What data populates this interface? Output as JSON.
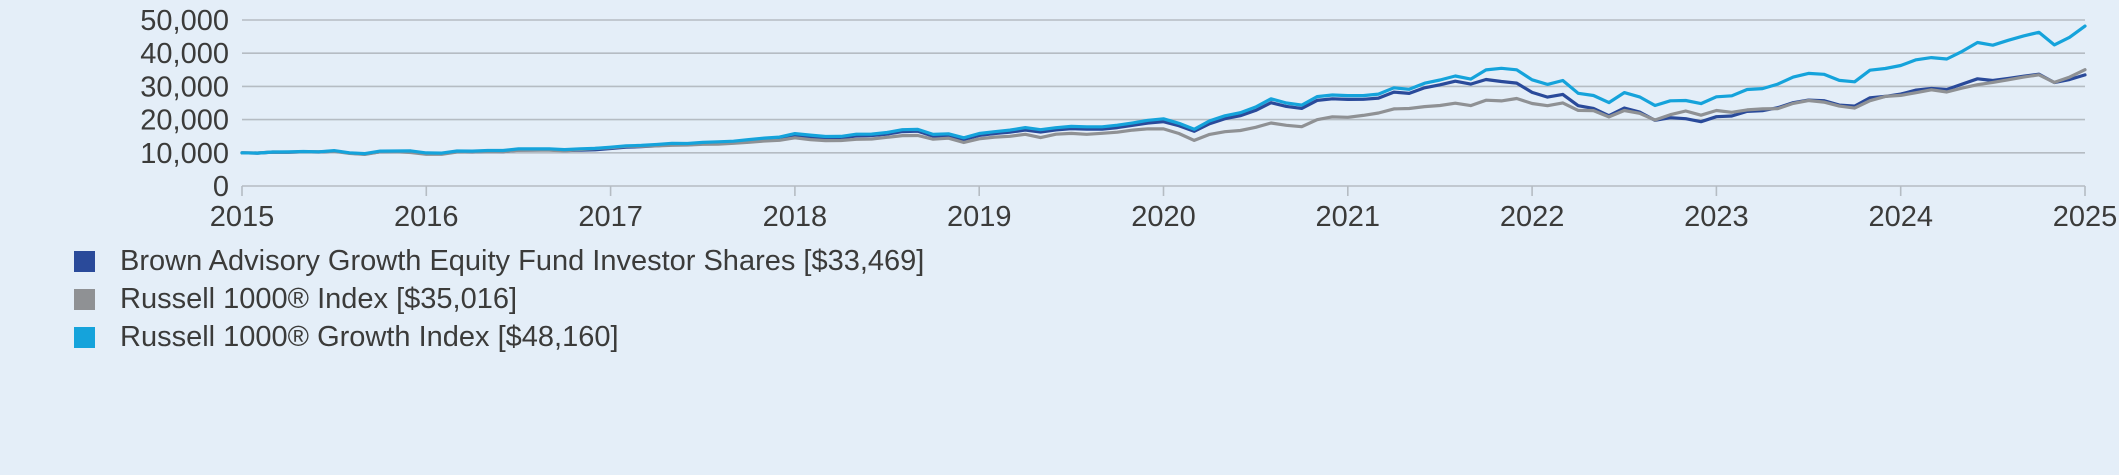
{
  "background_color": "#e4eef8",
  "chart_data": {
    "type": "line",
    "title": "",
    "xlabel": "",
    "ylabel": "",
    "grid": true,
    "grid_color": "#b5bcc3",
    "axis_color": "#b5bcc3",
    "text_color": "#3b3b3a",
    "legend_position": "bottom-left",
    "ylim": [
      0,
      50000
    ],
    "y_ticks": [
      0,
      10000,
      20000,
      30000,
      40000,
      50000
    ],
    "y_tick_labels": [
      "0",
      "10,000",
      "20,000",
      "30,000",
      "40,000",
      "50,000"
    ],
    "x_start": 2015,
    "x_end": 2025,
    "x_tick_labels": [
      "2015",
      "2016",
      "2017",
      "2018",
      "2019",
      "2020",
      "2021",
      "2022",
      "2023",
      "2024",
      "2025"
    ],
    "x_frequency": "monthly",
    "series": [
      {
        "name": "Brown Advisory Growth Equity Fund Investor Shares [$33,469]",
        "final_value": "$33,469",
        "color": "#2a4a9a",
        "values": [
          10000,
          9920,
          10200,
          10150,
          10300,
          10250,
          10520,
          9900,
          9620,
          10300,
          10400,
          10450,
          9850,
          9700,
          10300,
          10250,
          10420,
          10360,
          10800,
          10850,
          10900,
          10620,
          10800,
          10910,
          11300,
          11700,
          11850,
          12100,
          12450,
          12400,
          12700,
          12900,
          13050,
          13500,
          13900,
          14200,
          15100,
          14750,
          14380,
          14450,
          15080,
          15220,
          15620,
          16380,
          16500,
          15020,
          15200,
          14020,
          15230,
          15800,
          16200,
          16880,
          16280,
          16900,
          17280,
          17150,
          17100,
          17580,
          18280,
          18980,
          19380,
          18150,
          16480,
          18780,
          20280,
          21180,
          22780,
          25080,
          23980,
          23380,
          25780,
          26280,
          26080,
          26120,
          26480,
          28280,
          27880,
          29580,
          30480,
          31580,
          30680,
          32080,
          31480,
          30980,
          28180,
          26780,
          27580,
          24180,
          23380,
          21180,
          23480,
          22280,
          19780,
          20580,
          20280,
          19380,
          20880,
          21080,
          22480,
          22680,
          23580,
          25080,
          25880,
          25680,
          24380,
          24080,
          26580,
          26980,
          27680,
          28880,
          29380,
          29080,
          30680,
          32280,
          31780,
          32380,
          33080,
          33680,
          31180,
          32080,
          33469
        ]
      },
      {
        "name": "Russell 1000® Index [$35,016]",
        "final_value": "$35,016",
        "color": "#8f9194",
        "values": [
          10000,
          9930,
          10240,
          10190,
          10300,
          10260,
          10440,
          9810,
          9530,
          10290,
          10320,
          10090,
          9550,
          9560,
          10240,
          10280,
          10320,
          10350,
          10740,
          10770,
          10780,
          10570,
          10990,
          11310,
          11530,
          11950,
          11960,
          12090,
          12260,
          12340,
          12570,
          12610,
          12870,
          13160,
          13560,
          13770,
          14510,
          13980,
          13670,
          13710,
          14080,
          14160,
          14680,
          15190,
          15220,
          14100,
          14390,
          13110,
          14220,
          14730,
          14960,
          15560,
          14570,
          15600,
          15840,
          15580,
          15860,
          16200,
          16830,
          17220,
          17210,
          15820,
          13720,
          15530,
          16360,
          16730,
          17690,
          18980,
          18290,
          17850,
          19960,
          20840,
          20680,
          21260,
          21990,
          23230,
          23340,
          23920,
          24240,
          24940,
          24230,
          25840,
          25640,
          26360,
          24860,
          24200,
          25020,
          22760,
          22700,
          20810,
          22750,
          21890,
          19870,
          21480,
          22600,
          21330,
          22740,
          22190,
          22930,
          23230,
          23320,
          24870,
          25750,
          25280,
          24080,
          23470,
          25690,
          26980,
          27300,
          28100,
          28970,
          28300,
          29500,
          30500,
          31200,
          32000,
          32800,
          33500,
          31200,
          32800,
          35016
        ]
      },
      {
        "name": "Russell 1000® Growth Index [$48,160]",
        "final_value": "$48,160",
        "color": "#15a3db",
        "values": [
          10000,
          9900,
          10250,
          10280,
          10400,
          10310,
          10650,
          10000,
          9750,
          10500,
          10550,
          10570,
          9980,
          9900,
          10550,
          10520,
          10700,
          10680,
          11180,
          11160,
          11200,
          10950,
          11200,
          11320,
          11680,
          12100,
          12230,
          12500,
          12840,
          12800,
          13140,
          13310,
          13480,
          13990,
          14420,
          14740,
          15770,
          15340,
          14900,
          14940,
          15600,
          15640,
          16100,
          16970,
          17060,
          15550,
          15710,
          14510,
          15810,
          16370,
          16830,
          17600,
          16970,
          17560,
          17960,
          17820,
          17820,
          18320,
          19010,
          19800,
          20240,
          18900,
          17080,
          19600,
          21150,
          22080,
          23790,
          26250,
          25000,
          24380,
          26930,
          27420,
          27230,
          27230,
          27690,
          29570,
          29120,
          30960,
          31930,
          33130,
          32190,
          34960,
          35460,
          34990,
          31990,
          30600,
          31770,
          27910,
          27260,
          25120,
          28120,
          26830,
          24250,
          25650,
          25760,
          24810,
          26860,
          27180,
          29080,
          29330,
          30700,
          32800,
          33910,
          33640,
          31800,
          31400,
          34870,
          35400,
          36290,
          38000,
          38670,
          38250,
          40530,
          43230,
          42400,
          43900,
          45200,
          46300,
          42500,
          44800,
          48160
        ]
      }
    ]
  }
}
